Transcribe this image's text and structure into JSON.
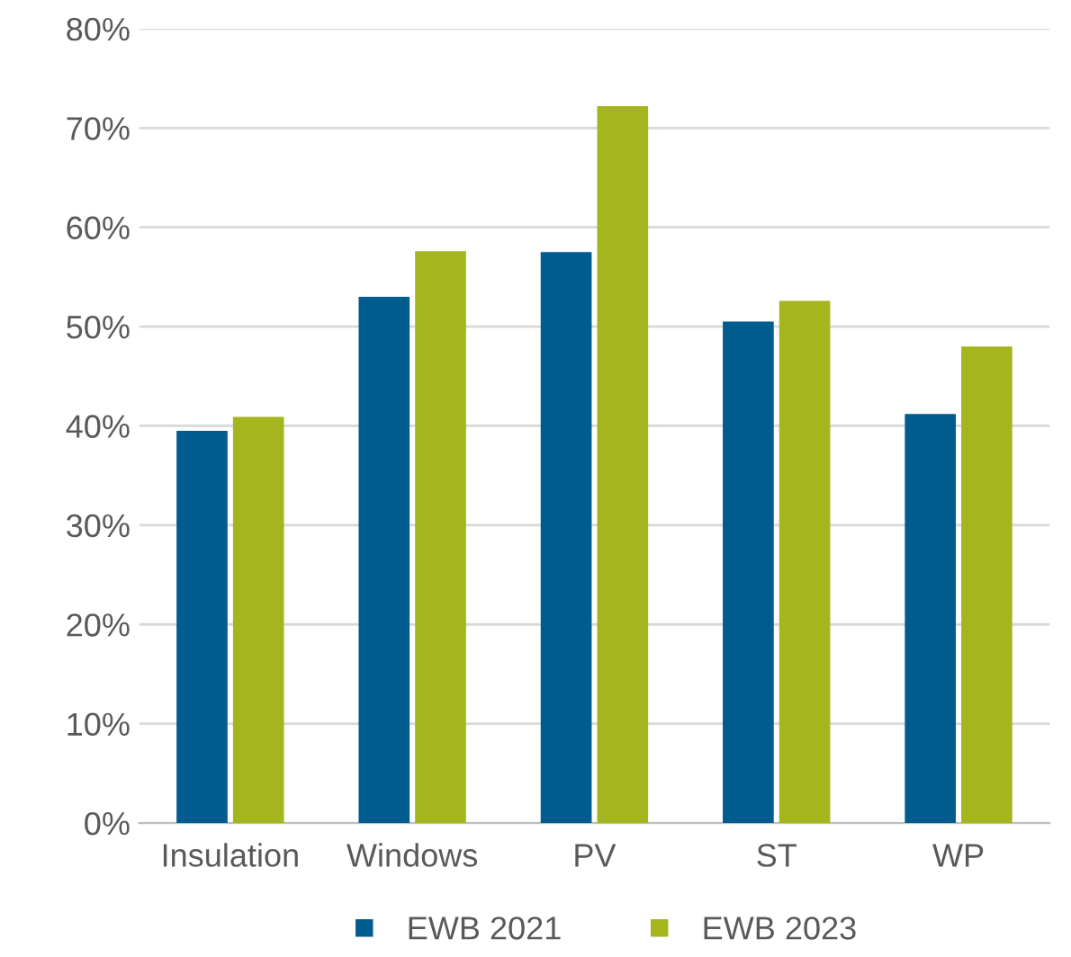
{
  "chart_data": {
    "type": "bar",
    "categories": [
      "Insulation",
      "Windows",
      "PV",
      "ST",
      "WP"
    ],
    "series": [
      {
        "name": "EWB 2021",
        "color": "#005b8e",
        "values": [
          39.5,
          53,
          57.5,
          50.5,
          41.2
        ]
      },
      {
        "name": "EWB 2023",
        "color": "#a5b51d",
        "values": [
          40.9,
          57.6,
          72.2,
          52.6,
          48
        ]
      }
    ],
    "ylim": [
      0,
      80
    ],
    "yticks": [
      {
        "value": 0,
        "label": "0%"
      },
      {
        "value": 10,
        "label": "10%"
      },
      {
        "value": 20,
        "label": "20%"
      },
      {
        "value": 30,
        "label": "30%"
      },
      {
        "value": 40,
        "label": "40%"
      },
      {
        "value": 50,
        "label": "50%"
      },
      {
        "value": 60,
        "label": "60%"
      },
      {
        "value": 70,
        "label": "70%"
      },
      {
        "value": 80,
        "label": "80%"
      }
    ],
    "grid": "y",
    "legend": "bottom"
  }
}
